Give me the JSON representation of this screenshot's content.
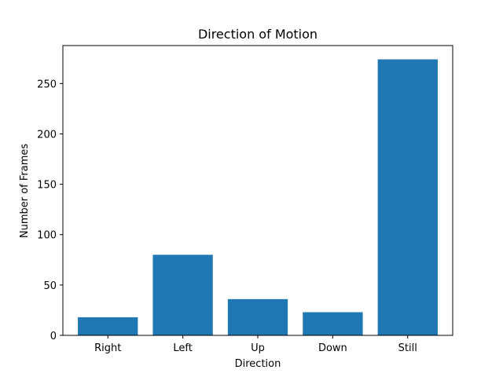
{
  "chart_data": {
    "type": "bar",
    "title": "Direction of Motion",
    "xlabel": "Direction",
    "ylabel": "Number of Frames",
    "categories": [
      "Right",
      "Left",
      "Up",
      "Down",
      "Still"
    ],
    "values": [
      18,
      80,
      36,
      23,
      274
    ],
    "ylim": [
      0,
      287.7
    ],
    "yticks": [
      0,
      50,
      100,
      150,
      200,
      250
    ],
    "bar_color": "#1f77b4",
    "grid": false,
    "legend": "none"
  }
}
